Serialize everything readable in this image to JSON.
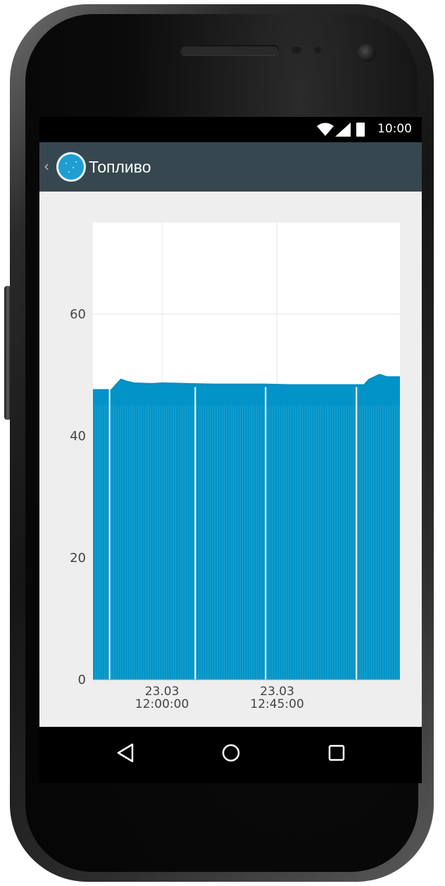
{
  "status_bar": {
    "time": "10:00",
    "icons": [
      "wifi-icon",
      "signal-icon",
      "battery-icon"
    ]
  },
  "action_bar": {
    "title": "Топливо",
    "icons": [
      "up-chevron-icon",
      "app-logo-icon"
    ]
  },
  "navigation": {
    "icons": [
      "back-icon",
      "home-icon",
      "recents-icon"
    ]
  },
  "colors": {
    "action_bar": "#37474f",
    "series": "#0294c8",
    "screen_bg": "#eeeeee"
  },
  "chart_data": {
    "type": "area",
    "title": "",
    "xlabel": "",
    "ylabel": "",
    "ylim": [
      0,
      75
    ],
    "y_ticks": [
      0,
      20,
      40,
      60
    ],
    "x_tick_labels": [
      {
        "date": "23.03",
        "time": "12:00:00"
      },
      {
        "date": "23.03",
        "time": "12:45:00"
      }
    ],
    "x_minutes_range": [
      -27,
      93
    ],
    "x_tick_minutes": [
      0,
      45
    ],
    "grid": true,
    "series": [
      {
        "x": [
          -27,
          -21,
          -20,
          -19,
          -18,
          -16,
          -14,
          -11,
          -4,
          0,
          10,
          20,
          30,
          40,
          50,
          60,
          70,
          74,
          79,
          81,
          85,
          88,
          93
        ],
        "values": [
          47.5,
          47.5,
          47.4,
          47.8,
          48.3,
          49.2,
          48.9,
          48.6,
          48.5,
          48.6,
          48.5,
          48.4,
          48.4,
          48.4,
          48.3,
          48.3,
          48.3,
          48.3,
          48.3,
          49.2,
          50.0,
          49.6,
          49.6
        ]
      }
    ]
  }
}
